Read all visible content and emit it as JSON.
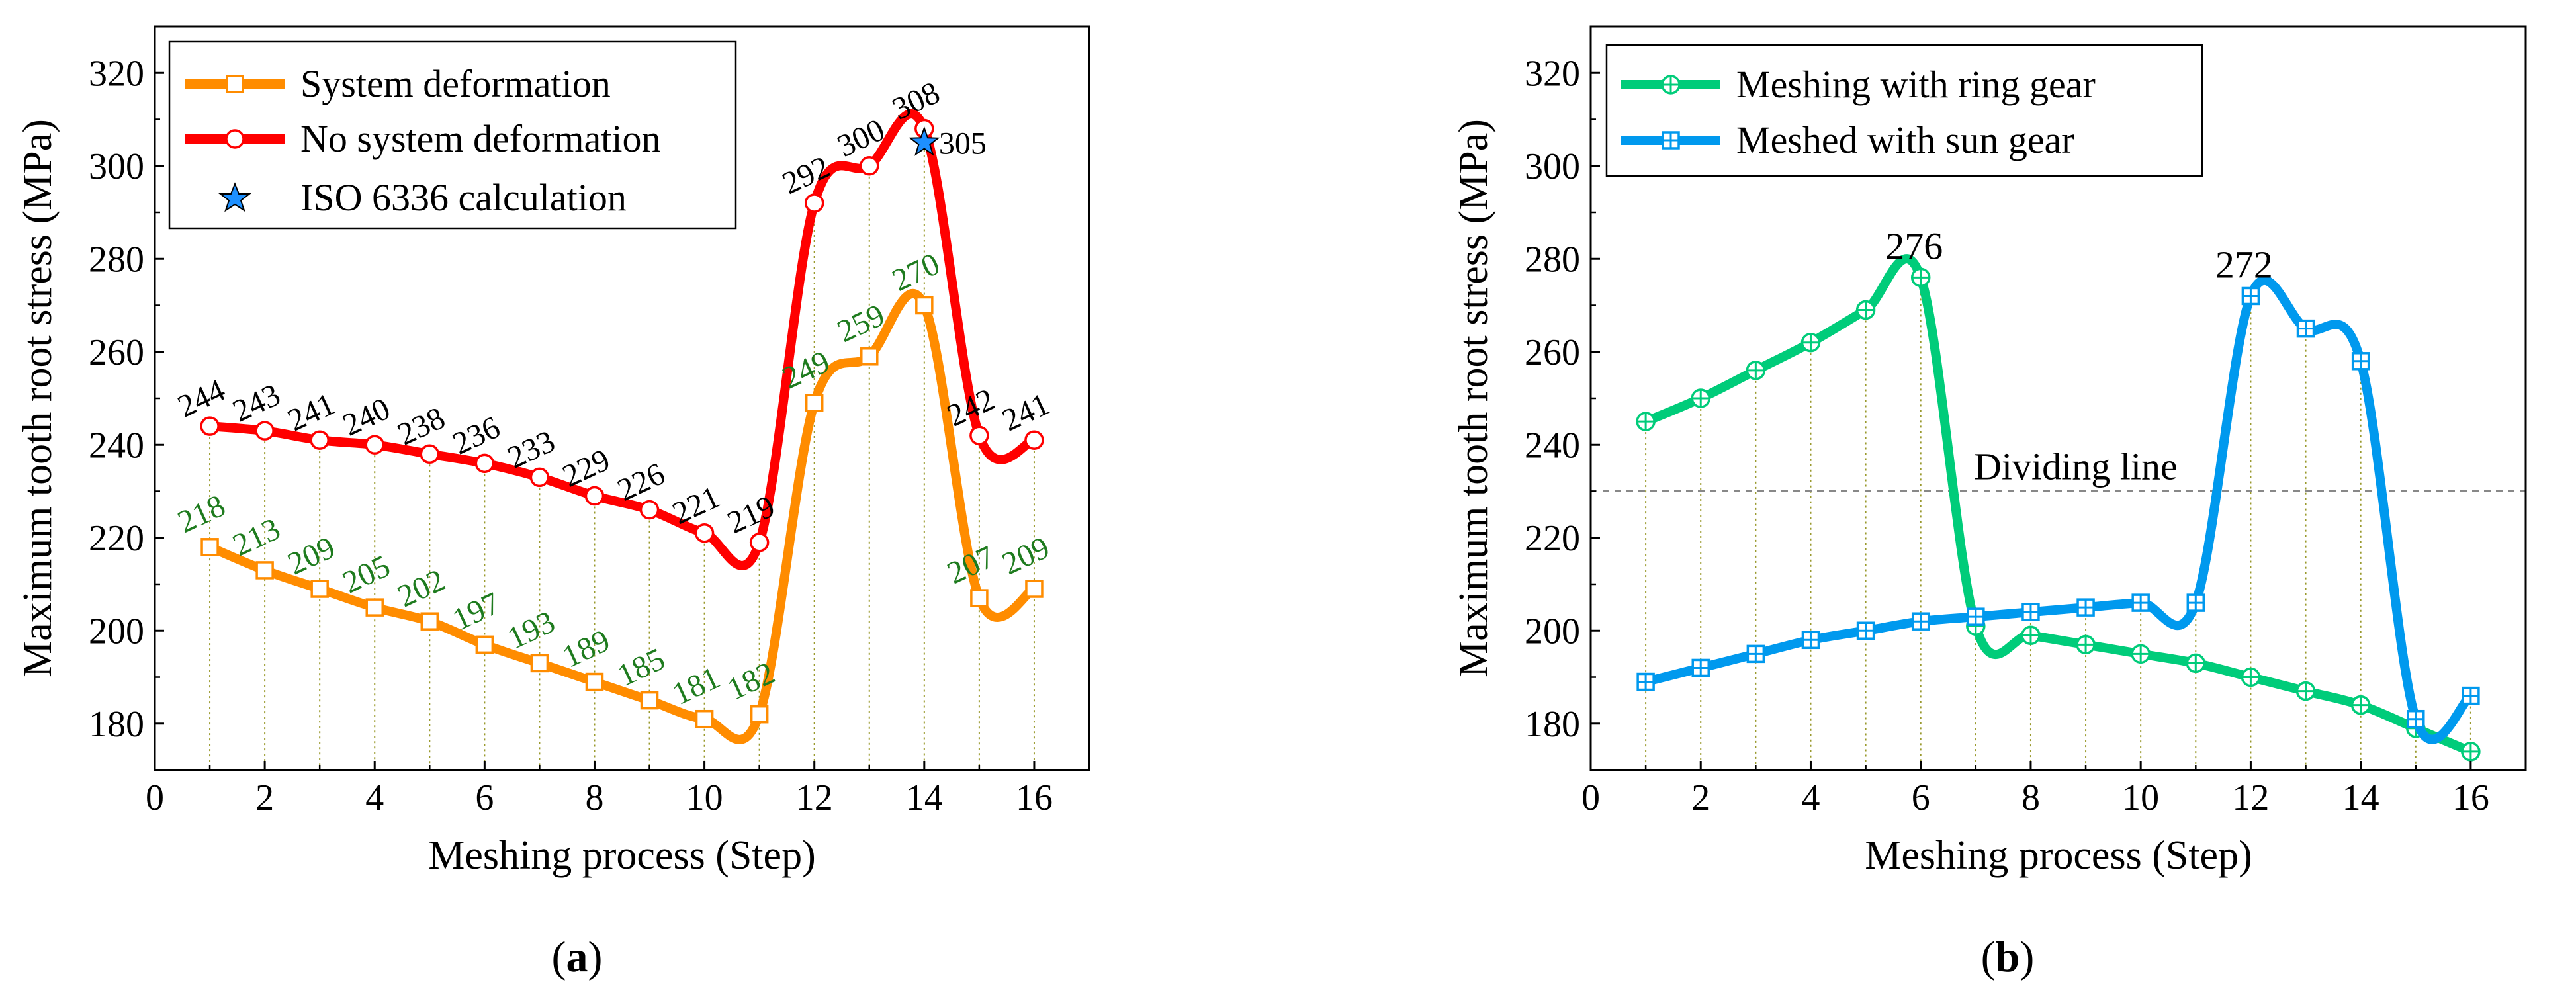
{
  "chart_data": [
    {
      "id": "a",
      "type": "line",
      "panel_label_open": "(",
      "panel_label_letter": "a",
      "panel_label_close": ")",
      "xlabel": "Meshing process (Step)",
      "ylabel": "Maximum tooth root stress (MPa)",
      "xlim": [
        0,
        17
      ],
      "ylim": [
        170,
        330
      ],
      "xticks": [
        0,
        2,
        4,
        6,
        8,
        10,
        12,
        14,
        16
      ],
      "yticks": [
        180,
        200,
        220,
        240,
        260,
        280,
        300,
        320
      ],
      "x": [
        1,
        2,
        3,
        4,
        5,
        6,
        7,
        8,
        9,
        10,
        11,
        12,
        13,
        14,
        15,
        16
      ],
      "series": [
        {
          "name": "System deformation",
          "color": "#FF8C00",
          "marker": "square",
          "label_color": "#1E7B1E",
          "values": [
            218,
            213,
            209,
            205,
            202,
            197,
            193,
            189,
            185,
            181,
            182,
            249,
            259,
            270,
            207,
            209
          ],
          "labels": [
            "218",
            "213",
            "209",
            "205",
            "202",
            "197",
            "193",
            "189",
            "185",
            "181",
            "182",
            "249",
            "259",
            "270",
            "207",
            "209"
          ]
        },
        {
          "name": "No system deformation",
          "color": "#FF0000",
          "marker": "circle",
          "label_color": "#000000",
          "values": [
            244,
            243,
            241,
            240,
            238,
            236,
            233,
            229,
            226,
            221,
            219,
            292,
            300,
            308,
            242,
            241
          ],
          "labels": [
            "244",
            "243",
            "241",
            "240",
            "238",
            "236",
            "233",
            "229",
            "226",
            "221",
            "219",
            "292",
            "300",
            "308",
            "242",
            "241"
          ]
        }
      ],
      "point_series": [
        {
          "name": "ISO 6336 calculation",
          "color": "#1E90FF",
          "marker": "star",
          "x": 14,
          "y": 305,
          "label": "305"
        }
      ],
      "legend": [
        "System deformation",
        "No system deformation",
        "ISO 6336 calculation"
      ],
      "legend_position": "top-left",
      "grid": false
    },
    {
      "id": "b",
      "type": "line",
      "panel_label_open": "(",
      "panel_label_letter": "b",
      "panel_label_close": ")",
      "xlabel": "Meshing process (Step)",
      "ylabel": "Maximum tooth root stress (MPa)",
      "xlim": [
        0,
        17
      ],
      "ylim": [
        170,
        330
      ],
      "xticks": [
        0,
        2,
        4,
        6,
        8,
        10,
        12,
        14,
        16
      ],
      "yticks": [
        180,
        200,
        220,
        240,
        260,
        280,
        300,
        320
      ],
      "x": [
        1,
        2,
        3,
        4,
        5,
        6,
        7,
        8,
        9,
        10,
        11,
        12,
        13,
        14,
        15,
        16
      ],
      "series": [
        {
          "name": "Meshing with ring gear",
          "color": "#00CC7A",
          "marker": "circle-plus",
          "values": [
            245,
            250,
            256,
            262,
            269,
            276,
            201,
            199,
            197,
            195,
            193,
            190,
            187,
            184,
            179,
            174
          ]
        },
        {
          "name": "Meshed with sun gear",
          "color": "#0099EE",
          "marker": "square-plus",
          "values": [
            189,
            192,
            195,
            198,
            200,
            202,
            203,
            204,
            205,
            206,
            206,
            272,
            265,
            258,
            181,
            186
          ]
        }
      ],
      "annotations": [
        {
          "text": "276",
          "x": 6,
          "y": 276
        },
        {
          "text": "272",
          "x": 12,
          "y": 272
        }
      ],
      "reference_line": {
        "y": 230,
        "label": "Dividing line",
        "style": "dashed",
        "color": "#888888"
      },
      "legend": [
        "Meshing with ring gear",
        "Meshed with sun gear"
      ],
      "legend_position": "top-left",
      "grid": false
    }
  ]
}
